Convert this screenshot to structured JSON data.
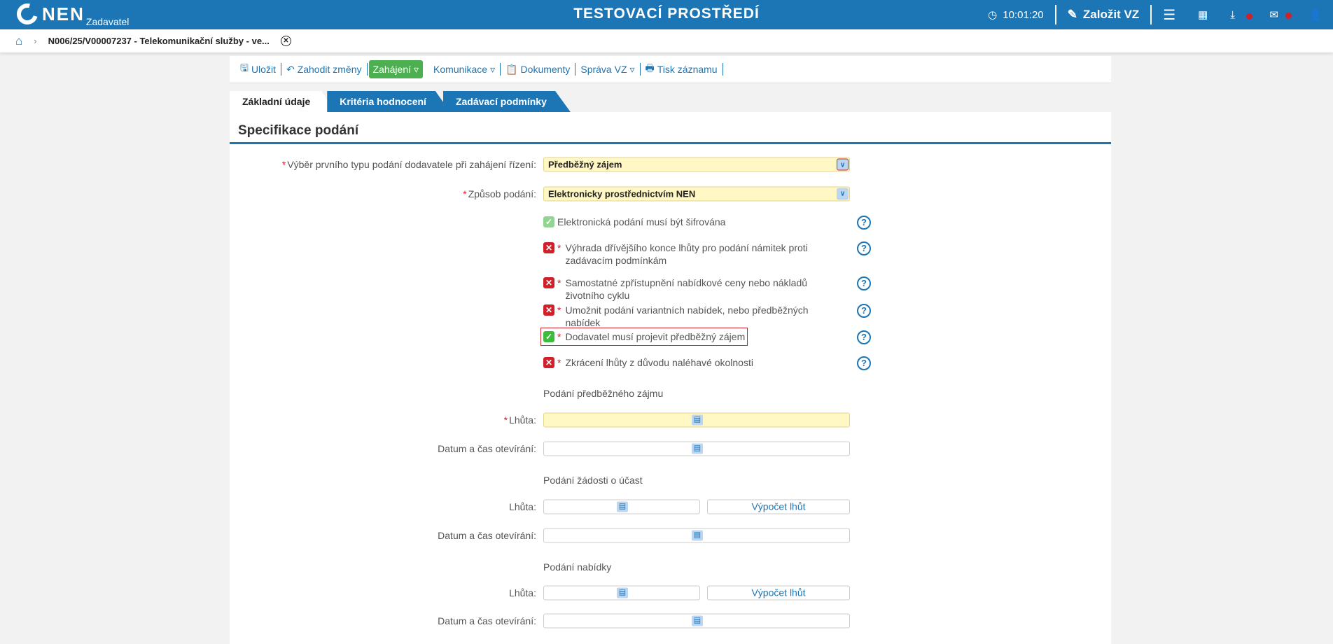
{
  "header": {
    "logo": "NEN",
    "logo_sub": "Zadavatel",
    "env_title": "TESTOVACÍ PROSTŘEDÍ",
    "time": "10:01:20",
    "create_label": "Založit VZ"
  },
  "breadcrumb": {
    "item": "N006/25/V00007237 - Telekomunikační služby - ve..."
  },
  "toolbar": {
    "save": "Uložit",
    "discard": "Zahodit změny",
    "start": "Zahájení",
    "communication": "Komunikace",
    "documents": "Dokumenty",
    "manage": "Správa VZ",
    "print": "Tisk záznamu"
  },
  "tabs": [
    {
      "label": "Základní údaje",
      "active": true
    },
    {
      "label": "Kritéria hodnocení"
    },
    {
      "label": "Zadávací podmínky"
    }
  ],
  "section_title": "Specifikace podání",
  "fields": {
    "first_type": {
      "label": "Výběr prvního typu podání dodavatele při zahájení řízení:",
      "value": "Předběžný zájem"
    },
    "method": {
      "label": "Způsob podání:",
      "value": "Elektronicky prostřednictvím NEN"
    }
  },
  "checkboxes": [
    {
      "label": "Elektronická podání musí být šifrována",
      "checked": true,
      "required": false
    },
    {
      "label": "Výhrada dřívějšího konce lhůty pro podání námitek proti zadávacím podmínkám",
      "checked": false,
      "required": true
    },
    {
      "label": "Samostatné zpřístupnění nabídkové ceny nebo nákladů životního cyklu",
      "checked": false,
      "required": true
    },
    {
      "label": "Umožnit podání variantních nabídek, nebo předběžných nabídek",
      "checked": false,
      "required": true
    },
    {
      "label": "Dodavatel musí projevit předběžný zájem",
      "checked": true,
      "required": true
    },
    {
      "label": "Zkrácení lhůty z důvodu naléhavé okolnosti",
      "checked": false,
      "required": true
    }
  ],
  "sections": [
    {
      "title": "Podání předběžného zájmu",
      "deadline_label": "Lhůta:",
      "opening_label": "Datum a čas otevírání:"
    },
    {
      "title": "Podání žádosti o účast",
      "deadline_label": "Lhůta:",
      "opening_label": "Datum a čas otevírání:",
      "calc": "Výpočet lhůt"
    },
    {
      "title": "Podání nabídky",
      "deadline_label": "Lhůta:",
      "opening_label": "Datum a čas otevírání:",
      "calc": "Výpočet lhůt"
    }
  ],
  "colors": {
    "brand": "#1c75b4",
    "required": "#d0202a",
    "highlight_input": "#fff7c4",
    "start_button": "#4caf50"
  }
}
